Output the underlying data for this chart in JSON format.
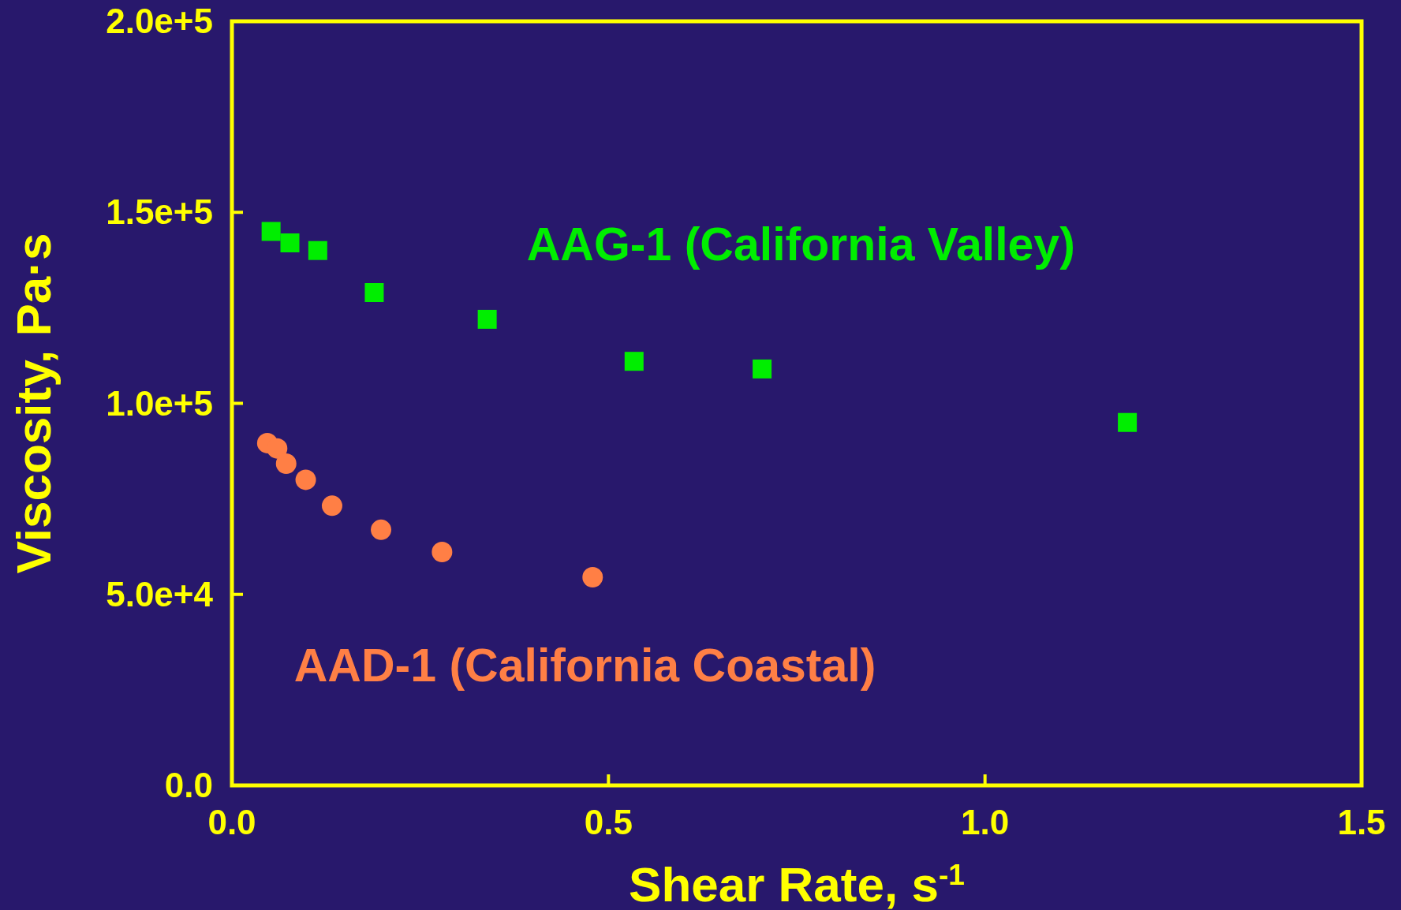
{
  "chart_data": {
    "type": "scatter",
    "xlabel": "Shear Rate, s$^{-1}$",
    "ylabel": "Viscosity, Pa·s",
    "xlim": [
      0,
      1.5
    ],
    "ylim": [
      0,
      200000
    ],
    "xticks": [
      {
        "value": 0,
        "label": "0.0"
      },
      {
        "value": 0.5,
        "label": "0.5"
      },
      {
        "value": 1,
        "label": "1.0"
      },
      {
        "value": 1.5,
        "label": "1.5"
      }
    ],
    "yticks": [
      {
        "value": 0,
        "label": "0.0"
      },
      {
        "value": 50000,
        "label": "5.0e+4"
      },
      {
        "value": 100000,
        "label": "1.0e+5"
      },
      {
        "value": 150000,
        "label": "1.5e+5"
      },
      {
        "value": 200000,
        "label": "2.0e+5"
      }
    ],
    "grid": false,
    "series": [
      {
        "name": "AAG-1 (California Valley)",
        "color": "#00ee00",
        "marker": "square",
        "x": [
          0.052,
          0.077,
          0.114,
          0.189,
          0.339,
          0.534,
          0.704,
          1.189
        ],
        "values": [
          145000,
          142000,
          140000,
          129000,
          122000,
          111000,
          109000,
          95000
        ]
      },
      {
        "name": "AAD-1 (California Coastal)",
        "color": "#ff7f45",
        "marker": "circle",
        "x": [
          0.047,
          0.06,
          0.072,
          0.098,
          0.133,
          0.198,
          0.279,
          0.479
        ],
        "values": [
          89600,
          88200,
          84200,
          80000,
          73200,
          66900,
          61100,
          54500
        ]
      }
    ]
  }
}
